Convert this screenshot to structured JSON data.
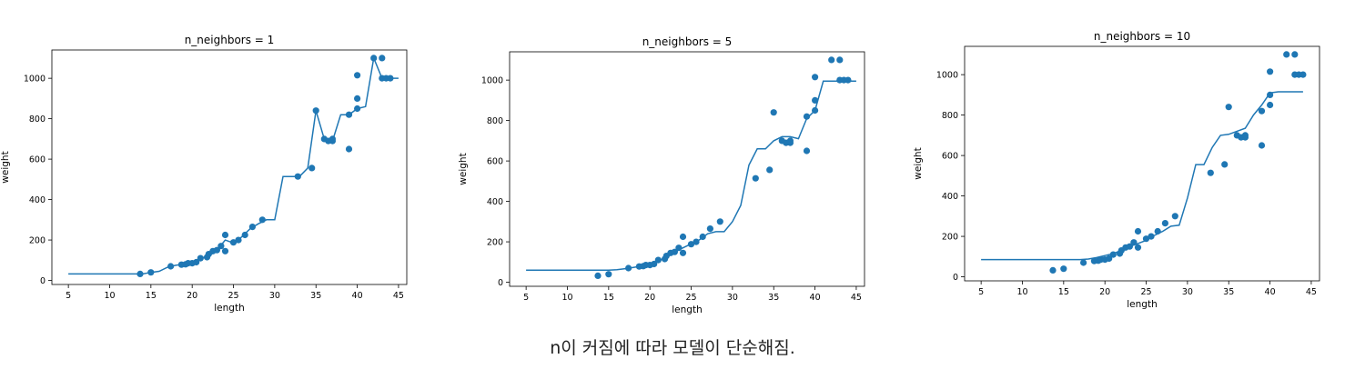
{
  "caption": "n이 커짐에 따라 모델이 단순해짐.",
  "chart_data": [
    {
      "type": "scatter",
      "title": "n_neighbors = 1",
      "xlabel": "length",
      "ylabel": "weight",
      "xlim": [
        3,
        46
      ],
      "ylim": [
        -20,
        1140
      ],
      "xticks": [
        5,
        10,
        15,
        20,
        25,
        30,
        35,
        40,
        45
      ],
      "yticks": [
        0,
        200,
        400,
        600,
        800,
        1000
      ],
      "grid": false,
      "series": [
        {
          "mark": "scatter",
          "x": [
            13.7,
            15.0,
            17.4,
            18.7,
            19.2,
            19.5,
            20.0,
            20.5,
            21.0,
            21.8,
            22.0,
            22.5,
            23.0,
            23.5,
            24.0,
            24.0,
            25.0,
            25.6,
            26.4,
            27.3,
            28.5,
            32.8,
            34.5,
            35.0,
            36.0,
            36.5,
            37.0,
            37.0,
            39.0,
            39.0,
            40.0,
            40.0,
            40.0,
            42.0,
            43.0,
            43.0,
            43.5,
            44.0
          ],
          "y": [
            32,
            40,
            70,
            78,
            80,
            85,
            85,
            90,
            110,
            115,
            130,
            145,
            150,
            170,
            225,
            145,
            188,
            200,
            225,
            265,
            300,
            514,
            556,
            840,
            700,
            690,
            690,
            700,
            820,
            650,
            850,
            900,
            1015,
            1100,
            1100,
            1000,
            1000,
            1000
          ]
        },
        {
          "mark": "line",
          "x": [
            5,
            6,
            7,
            8,
            9,
            10,
            11,
            12,
            13,
            14,
            15,
            16,
            17,
            18,
            19,
            20,
            21,
            22,
            23,
            24,
            25,
            26,
            27,
            28,
            29,
            30,
            31,
            32,
            33,
            34,
            35,
            36,
            37,
            38,
            39,
            40,
            41,
            42,
            43,
            44,
            45
          ],
          "y": [
            32,
            32,
            32,
            32,
            32,
            32,
            32,
            32,
            32,
            32,
            40,
            45,
            65,
            75,
            80,
            85,
            110,
            120,
            150,
            200,
            185,
            215,
            255,
            280,
            300,
            300,
            514,
            514,
            514,
            556,
            840,
            700,
            690,
            820,
            820,
            850,
            860,
            1100,
            1000,
            1000,
            1000
          ]
        }
      ]
    },
    {
      "type": "scatter",
      "title": "n_neighbors = 5",
      "xlabel": "length",
      "ylabel": "weight",
      "xlim": [
        3,
        46
      ],
      "ylim": [
        -20,
        1140
      ],
      "xticks": [
        5,
        10,
        15,
        20,
        25,
        30,
        35,
        40,
        45
      ],
      "yticks": [
        0,
        200,
        400,
        600,
        800,
        1000
      ],
      "grid": false,
      "series": [
        {
          "mark": "scatter",
          "x": [
            13.7,
            15.0,
            17.4,
            18.7,
            19.2,
            19.5,
            20.0,
            20.5,
            21.0,
            21.8,
            22.0,
            22.5,
            23.0,
            23.5,
            24.0,
            24.0,
            25.0,
            25.6,
            26.4,
            27.3,
            28.5,
            32.8,
            34.5,
            35.0,
            36.0,
            36.5,
            37.0,
            37.0,
            39.0,
            39.0,
            40.0,
            40.0,
            40.0,
            42.0,
            43.0,
            43.0,
            43.5,
            44.0
          ],
          "y": [
            32,
            40,
            70,
            78,
            80,
            85,
            85,
            90,
            110,
            115,
            130,
            145,
            150,
            170,
            225,
            145,
            188,
            200,
            225,
            265,
            300,
            514,
            556,
            840,
            700,
            690,
            690,
            700,
            820,
            650,
            850,
            900,
            1015,
            1100,
            1100,
            1000,
            1000,
            1000
          ]
        },
        {
          "mark": "line",
          "x": [
            5,
            6,
            7,
            8,
            9,
            10,
            11,
            12,
            13,
            14,
            15,
            16,
            17,
            18,
            19,
            20,
            21,
            22,
            23,
            24,
            25,
            26,
            27,
            28,
            29,
            30,
            31,
            32,
            33,
            34,
            35,
            36,
            37,
            38,
            39,
            40,
            41,
            42,
            43,
            44,
            45
          ],
          "y": [
            60,
            60,
            60,
            60,
            60,
            60,
            60,
            60,
            60,
            60,
            60,
            62,
            67,
            73,
            80,
            90,
            105,
            125,
            150,
            170,
            190,
            210,
            240,
            250,
            250,
            300,
            380,
            580,
            660,
            660,
            700,
            720,
            720,
            710,
            810,
            850,
            995,
            995,
            995,
            995,
            995
          ]
        }
      ]
    },
    {
      "type": "scatter",
      "title": "n_neighbors = 10",
      "xlabel": "length",
      "ylabel": "weight",
      "xlim": [
        3,
        46
      ],
      "ylim": [
        -20,
        1140
      ],
      "xticks": [
        5,
        10,
        15,
        20,
        25,
        30,
        35,
        40,
        45
      ],
      "yticks": [
        0,
        200,
        400,
        600,
        800,
        1000
      ],
      "grid": false,
      "series": [
        {
          "mark": "scatter",
          "x": [
            13.7,
            15.0,
            17.4,
            18.7,
            19.2,
            19.5,
            20.0,
            20.5,
            21.0,
            21.8,
            22.0,
            22.5,
            23.0,
            23.5,
            24.0,
            24.0,
            25.0,
            25.6,
            26.4,
            27.3,
            28.5,
            32.8,
            34.5,
            35.0,
            36.0,
            36.5,
            37.0,
            37.0,
            39.0,
            39.0,
            40.0,
            40.0,
            40.0,
            42.0,
            43.0,
            43.0,
            43.5,
            44.0
          ],
          "y": [
            32,
            40,
            70,
            78,
            80,
            85,
            85,
            90,
            110,
            115,
            130,
            145,
            150,
            170,
            225,
            145,
            188,
            200,
            225,
            265,
            300,
            514,
            556,
            840,
            700,
            690,
            690,
            700,
            820,
            650,
            850,
            900,
            1015,
            1100,
            1100,
            1000,
            1000,
            1000
          ]
        },
        {
          "mark": "line",
          "x": [
            5,
            6,
            7,
            8,
            9,
            10,
            11,
            12,
            13,
            14,
            15,
            16,
            17,
            18,
            19,
            20,
            21,
            22,
            23,
            24,
            25,
            26,
            27,
            28,
            29,
            30,
            31,
            32,
            33,
            34,
            35,
            36,
            37,
            38,
            39,
            40,
            41,
            42,
            43,
            44
          ],
          "y": [
            85,
            85,
            85,
            85,
            85,
            85,
            85,
            85,
            85,
            85,
            85,
            85,
            85,
            88,
            95,
            105,
            115,
            130,
            150,
            165,
            180,
            205,
            225,
            250,
            255,
            390,
            555,
            555,
            640,
            700,
            705,
            720,
            735,
            800,
            850,
            910,
            915,
            915,
            915,
            915
          ]
        }
      ]
    }
  ]
}
